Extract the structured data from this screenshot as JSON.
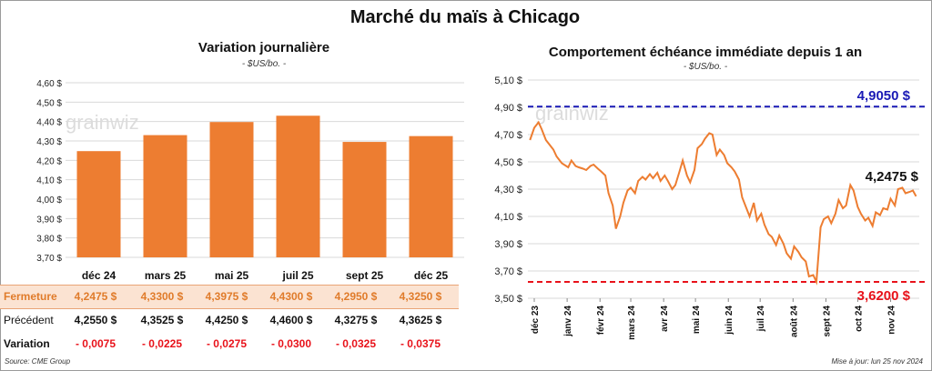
{
  "title": "Marché du maïs à Chicago",
  "colors": {
    "bar": "#ed7d31",
    "line": "#ed7d31",
    "high": "#1a1ab5",
    "low": "#e8121a",
    "grid": "#d9d9d9"
  },
  "left": {
    "title": "Variation journalière",
    "unit": "- $US/bo. -",
    "watermark": "grainwiz"
  },
  "right": {
    "title": "Comportement échéance immédiate depuis 1 an",
    "unit": "- $US/bo. -",
    "watermark": "grainwiz",
    "high_label": "4,9050 $",
    "low_label": "3,6200 $",
    "last_label": "4,2475 $"
  },
  "table": {
    "rows": [
      {
        "label": "Fermeture",
        "values": [
          "4,2475  $",
          "4,3300  $",
          "4,3975  $",
          "4,4300  $",
          "4,2950  $",
          "4,3250  $"
        ]
      },
      {
        "label": "Précédent",
        "values": [
          "4,2550  $",
          "4,3525  $",
          "4,4250  $",
          "4,4600  $",
          "4,3275  $",
          "4,3625  $"
        ]
      },
      {
        "label": "Variation",
        "values": [
          "- 0,0075",
          "- 0,0225",
          "- 0,0275",
          "- 0,0300",
          "- 0,0325",
          "- 0,0375"
        ]
      }
    ]
  },
  "footer": {
    "source": "Source: CME Group",
    "updated": "Mise à jour: lun 25 nov 2024"
  },
  "chart_data": [
    {
      "type": "bar",
      "title": "Variation journalière",
      "ylabel": "- $US/bo. -",
      "categories": [
        "déc 24",
        "mars 25",
        "mai 25",
        "juil 25",
        "sept 25",
        "déc 25"
      ],
      "values": [
        4.2475,
        4.33,
        4.3975,
        4.43,
        4.295,
        4.325
      ],
      "ylim": [
        3.7,
        4.6
      ],
      "yticks": [
        "3,70 $",
        "3,80 $",
        "3,90 $",
        "4,00 $",
        "4,10 $",
        "4,20 $",
        "4,30 $",
        "4,40 $",
        "4,50 $",
        "4,60 $"
      ],
      "grid": true
    },
    {
      "type": "line",
      "title": "Comportement échéance immédiate depuis 1 an",
      "ylabel": "- $US/bo. -",
      "ylim": [
        3.5,
        5.1
      ],
      "yticks": [
        "3,50 $",
        "3,70 $",
        "3,90 $",
        "4,10 $",
        "4,30 $",
        "4,50 $",
        "4,70 $",
        "4,90 $",
        "5,10 $"
      ],
      "xticks": [
        "déc 23",
        "janv 24",
        "févr 24",
        "mars 24",
        "avr 24",
        "mai 24",
        "juin 24",
        "juil 24",
        "août 24",
        "sept 24",
        "oct 24",
        "nov 24"
      ],
      "reference_lines": [
        {
          "label": "4,9050 $",
          "value": 4.905
        },
        {
          "label": "3,6200 $",
          "value": 3.62
        }
      ],
      "last_value": 4.2475,
      "grid": true,
      "x": [
        "2023-11-27",
        "2023-12-01",
        "2023-12-05",
        "2023-12-08",
        "2023-12-12",
        "2023-12-15",
        "2023-12-19",
        "2023-12-22",
        "2023-12-27",
        "2024-01-02",
        "2024-01-05",
        "2024-01-09",
        "2024-01-12",
        "2024-01-16",
        "2024-01-19",
        "2024-01-23",
        "2024-01-26",
        "2024-01-30",
        "2024-02-02",
        "2024-02-06",
        "2024-02-09",
        "2024-02-13",
        "2024-02-16",
        "2024-02-20",
        "2024-02-23",
        "2024-02-27",
        "2024-03-01",
        "2024-03-05",
        "2024-03-08",
        "2024-03-12",
        "2024-03-15",
        "2024-03-19",
        "2024-03-22",
        "2024-03-26",
        "2024-03-29",
        "2024-04-02",
        "2024-04-05",
        "2024-04-09",
        "2024-04-12",
        "2024-04-16",
        "2024-04-19",
        "2024-04-23",
        "2024-04-26",
        "2024-04-30",
        "2024-05-03",
        "2024-05-07",
        "2024-05-10",
        "2024-05-14",
        "2024-05-17",
        "2024-05-21",
        "2024-05-24",
        "2024-05-28",
        "2024-05-31",
        "2024-06-04",
        "2024-06-07",
        "2024-06-11",
        "2024-06-14",
        "2024-06-18",
        "2024-06-21",
        "2024-06-25",
        "2024-06-28",
        "2024-07-02",
        "2024-07-05",
        "2024-07-09",
        "2024-07-12",
        "2024-07-16",
        "2024-07-19",
        "2024-07-23",
        "2024-07-26",
        "2024-07-30",
        "2024-08-02",
        "2024-08-06",
        "2024-08-09",
        "2024-08-13",
        "2024-08-16",
        "2024-08-20",
        "2024-08-23",
        "2024-08-27",
        "2024-08-30",
        "2024-09-03",
        "2024-09-06",
        "2024-09-10",
        "2024-09-13",
        "2024-09-17",
        "2024-09-20",
        "2024-09-24",
        "2024-09-27",
        "2024-10-01",
        "2024-10-04",
        "2024-10-08",
        "2024-10-11",
        "2024-10-15",
        "2024-10-18",
        "2024-10-22",
        "2024-10-25",
        "2024-10-29",
        "2024-11-01",
        "2024-11-05",
        "2024-11-08",
        "2024-11-12",
        "2024-11-15",
        "2024-11-19",
        "2024-11-22",
        "2024-11-25"
      ],
      "y": [
        4.66,
        4.75,
        4.79,
        4.74,
        4.66,
        4.63,
        4.59,
        4.54,
        4.49,
        4.46,
        4.51,
        4.47,
        4.46,
        4.45,
        4.44,
        4.47,
        4.48,
        4.45,
        4.43,
        4.4,
        4.27,
        4.18,
        4.01,
        4.1,
        4.2,
        4.29,
        4.31,
        4.27,
        4.36,
        4.39,
        4.37,
        4.41,
        4.38,
        4.42,
        4.36,
        4.4,
        4.36,
        4.3,
        4.33,
        4.43,
        4.51,
        4.4,
        4.35,
        4.44,
        4.6,
        4.63,
        4.67,
        4.71,
        4.7,
        4.55,
        4.59,
        4.55,
        4.49,
        4.46,
        4.43,
        4.37,
        4.24,
        4.16,
        4.1,
        4.2,
        4.07,
        4.12,
        4.04,
        3.97,
        3.95,
        3.89,
        3.96,
        3.9,
        3.83,
        3.79,
        3.88,
        3.84,
        3.8,
        3.77,
        3.66,
        3.67,
        3.62,
        4.02,
        4.08,
        4.1,
        4.05,
        4.12,
        4.22,
        4.16,
        4.18,
        4.33,
        4.29,
        4.17,
        4.12,
        4.07,
        4.09,
        4.03,
        4.13,
        4.11,
        4.16,
        4.15,
        4.23,
        4.18,
        4.3,
        4.31,
        4.27,
        4.28,
        4.29,
        4.2475
      ]
    }
  ]
}
